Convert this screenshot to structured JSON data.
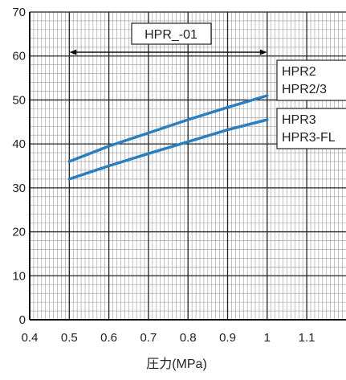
{
  "chart_data": {
    "type": "line",
    "xlabel": "圧力(MPa)",
    "ylabel": "",
    "xlim": [
      0.4,
      1.2
    ],
    "ylim": [
      0,
      70
    ],
    "x_ticks": [
      "0.4",
      "0.5",
      "0.6",
      "0.7",
      "0.8",
      "0.9",
      "1",
      "1.1"
    ],
    "y_ticks": [
      "0",
      "10",
      "20",
      "30",
      "40",
      "50",
      "60",
      "70"
    ],
    "grid": true,
    "series": [
      {
        "name": "HPR2 / HPR2/3",
        "labels": [
          "HPR2",
          "HPR2/3"
        ],
        "color": "#2a7fc0",
        "x": [
          0.5,
          0.6,
          0.7,
          0.8,
          0.9,
          1.0
        ],
        "y": [
          36,
          39.5,
          42.5,
          45.5,
          48.3,
          51
        ]
      },
      {
        "name": "HPR3 / HPR3-FL",
        "labels": [
          "HPR3",
          "HPR3-FL"
        ],
        "color": "#2a7fc0",
        "x": [
          0.5,
          0.6,
          0.7,
          0.8,
          0.9,
          1.0
        ],
        "y": [
          32,
          35,
          37.8,
          40.5,
          43.2,
          45.5
        ]
      }
    ],
    "annotations": {
      "range_label": "HPR_-01",
      "range_x": [
        0.5,
        1.0
      ]
    }
  }
}
